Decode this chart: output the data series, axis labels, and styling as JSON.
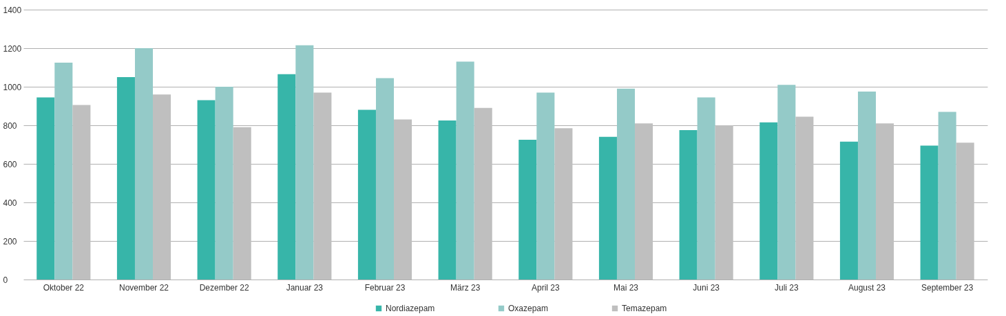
{
  "chart_data": {
    "type": "bar",
    "categories": [
      "Oktober 22",
      "November 22",
      "Dezember 22",
      "Januar 23",
      "Februar 23",
      "März 23",
      "April 23",
      "Mai 23",
      "Juni 23",
      "Juli 23",
      "August 23",
      "September 23"
    ],
    "series": [
      {
        "name": "Nordiazepam",
        "color": "#37b5a9",
        "values": [
          945,
          1050,
          930,
          1065,
          880,
          825,
          725,
          740,
          775,
          815,
          715,
          695
        ]
      },
      {
        "name": "Oxazepam",
        "color": "#94cac8",
        "values": [
          1125,
          1200,
          1000,
          1215,
          1045,
          1130,
          970,
          990,
          945,
          1010,
          975,
          870
        ]
      },
      {
        "name": "Temazepam",
        "color": "#bfbfbf",
        "values": [
          905,
          960,
          790,
          970,
          830,
          890,
          785,
          810,
          800,
          845,
          810,
          710
        ]
      }
    ],
    "ylim": [
      0,
      1400
    ],
    "yticks": [
      0,
      200,
      400,
      600,
      800,
      1000,
      1200,
      1400
    ],
    "grid": "y",
    "legend": "bottom"
  }
}
